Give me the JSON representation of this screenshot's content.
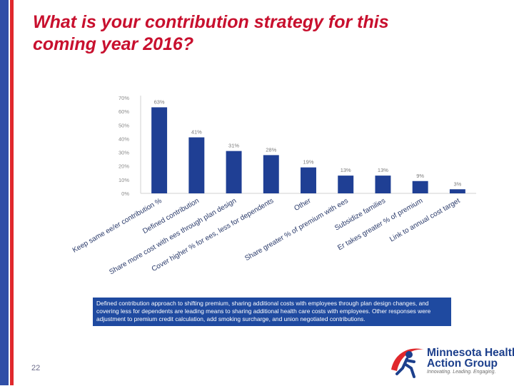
{
  "slide": {
    "title_line1": "What is your contribution strategy for this",
    "title_line2": "coming year 2016?",
    "caption": "Defined contribution approach to shifting premium, sharing additional costs with employees through plan design changes, and covering less for dependents are leading means to sharing additional health care costs with employees. Other responses were adjustment to premium credit calculation, add smoking surcharge, and union negotiated contributions.",
    "page_number": "22",
    "logo": {
      "line1": "Minnesota Health",
      "line2": "Action Group",
      "tagline": "Innovating. Leading. Engaging."
    },
    "colors": {
      "title": "#c8102e",
      "bar": "#1f3f94",
      "caption_bg": "#1f4aa0"
    }
  },
  "chart_data": {
    "type": "bar",
    "categories": [
      "Keep same ee/er contribution %",
      "Defined contribution",
      "Share more cost with ees through plan design",
      "Cover higher % for ees, less for dependents",
      "Other",
      "Share greater % of premium with ees",
      "Subsidize families",
      "Er takes greater % of premium",
      "Link to annual cost target"
    ],
    "values": [
      63,
      41,
      31,
      28,
      19,
      13,
      13,
      9,
      3
    ],
    "value_labels": [
      "63%",
      "41%",
      "31%",
      "28%",
      "19%",
      "13%",
      "13%",
      "9%",
      "3%"
    ],
    "yticks": [
      "0%",
      "10%",
      "20%",
      "30%",
      "40%",
      "50%",
      "60%",
      "70%"
    ],
    "ylim": [
      0,
      70
    ],
    "title": "",
    "xlabel": "",
    "ylabel": "",
    "grid": false
  }
}
